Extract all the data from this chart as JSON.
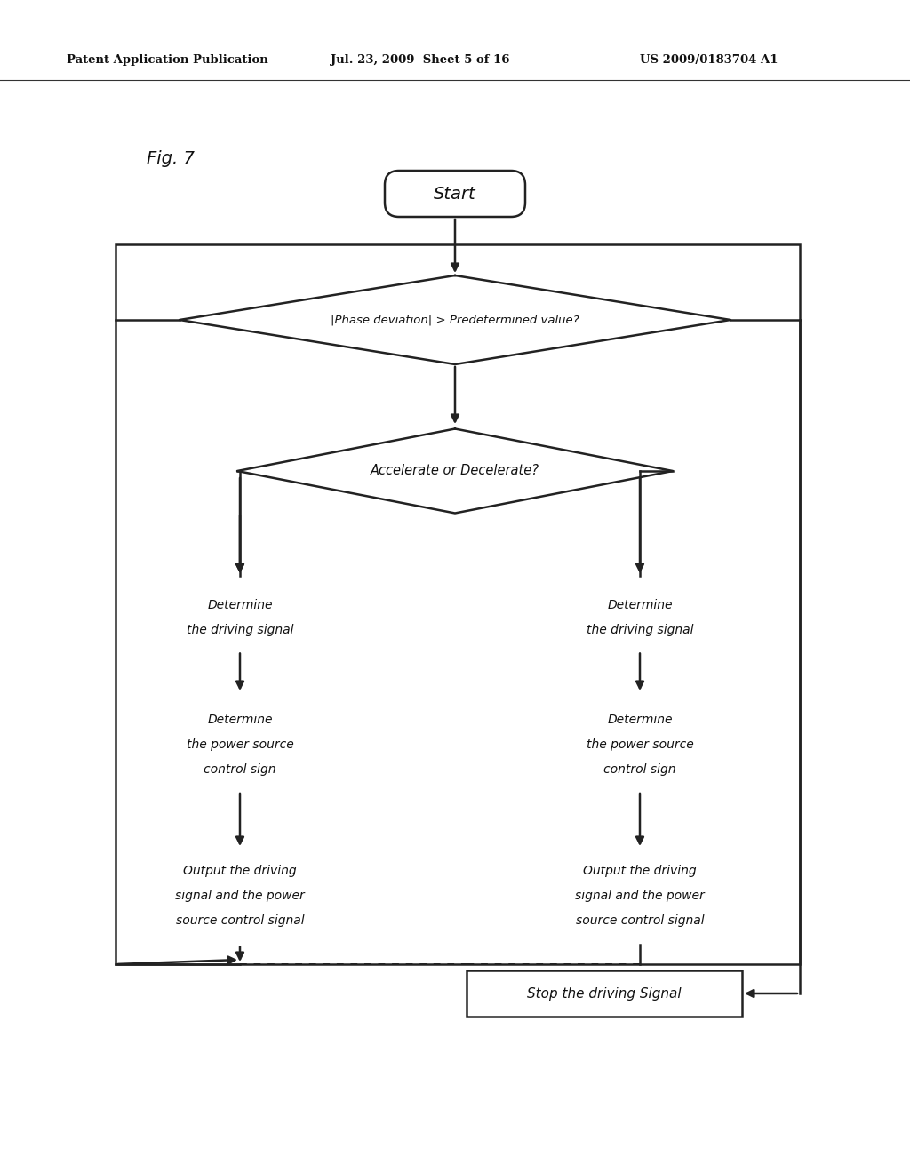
{
  "header_left": "Patent Application Publication",
  "header_center": "Jul. 23, 2009  Sheet 5 of 16",
  "header_right": "US 2009/0183704 A1",
  "fig_label": "Fig. 7",
  "bg_color": "#ffffff",
  "line_color": "#222222",
  "text_color": "#111111"
}
